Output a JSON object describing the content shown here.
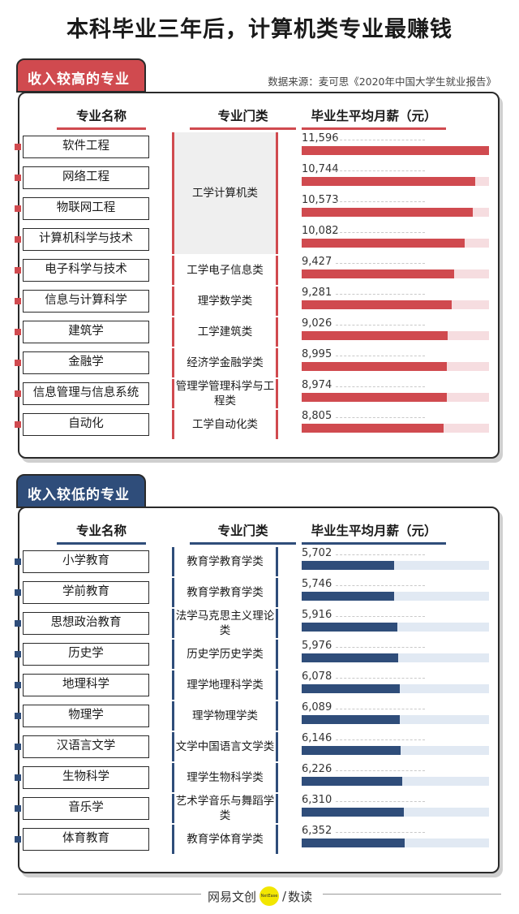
{
  "title": "本科毕业三年后，计算机类专业最赚钱",
  "source": "数据来源：麦可思《2020年中国大学生就业报告》",
  "colors": {
    "high": "#d04a4f",
    "high_track": "#f6dde0",
    "low": "#2f4d7a",
    "low_track": "#e1e9f3"
  },
  "columns": {
    "major": "专业名称",
    "category": "专业门类",
    "salary": "毕业生平均月薪（元）"
  },
  "chart_data": [
    {
      "type": "bar",
      "title": "收入较高的专业",
      "orientation": "horizontal",
      "xlim": [
        0,
        11596
      ],
      "categories": [
        "软件工程",
        "网络工程",
        "物联网工程",
        "计算机科学与技术",
        "电子科学与技术",
        "信息与计算科学",
        "建筑学",
        "金融学",
        "信息管理与信息系统",
        "自动化"
      ],
      "values": [
        11596,
        10744,
        10573,
        10082,
        9427,
        9281,
        9026,
        8995,
        8974,
        8805
      ],
      "value_labels": [
        "11,596",
        "10,744",
        "10,573",
        "10,082",
        "9,427",
        "9,281",
        "9,026",
        "8,995",
        "8,974",
        "8,805"
      ],
      "groups": [
        {
          "label": "工学计算机类",
          "rows": [
            0,
            1,
            2,
            3
          ]
        },
        {
          "label": "工学电子信息类",
          "rows": [
            4
          ]
        },
        {
          "label": "理学数学类",
          "rows": [
            5
          ]
        },
        {
          "label": "工学建筑类",
          "rows": [
            6
          ]
        },
        {
          "label": "经济学金融学类",
          "rows": [
            7
          ]
        },
        {
          "label": "管理学管理科学与工程类",
          "rows": [
            8
          ]
        },
        {
          "label": "工学自动化类",
          "rows": [
            9
          ]
        }
      ]
    },
    {
      "type": "bar",
      "title": "收入较低的专业",
      "orientation": "horizontal",
      "xlim": [
        0,
        11596
      ],
      "categories": [
        "小学教育",
        "学前教育",
        "思想政治教育",
        "历史学",
        "地理科学",
        "物理学",
        "汉语言文学",
        "生物科学",
        "音乐学",
        "体育教育"
      ],
      "values": [
        5702,
        5746,
        5916,
        5976,
        6078,
        6089,
        6146,
        6226,
        6310,
        6352
      ],
      "value_labels": [
        "5,702",
        "5,746",
        "5,916",
        "5,976",
        "6,078",
        "6,089",
        "6,146",
        "6,226",
        "6,310",
        "6,352"
      ],
      "groups": [
        {
          "label": "教育学教育学类",
          "rows": [
            0
          ]
        },
        {
          "label": "教育学教育学类",
          "rows": [
            1
          ]
        },
        {
          "label": "法学马克思主义理论类",
          "rows": [
            2
          ]
        },
        {
          "label": "历史学历史学类",
          "rows": [
            3
          ]
        },
        {
          "label": "理学地理科学类",
          "rows": [
            4
          ]
        },
        {
          "label": "理学物理学类",
          "rows": [
            5
          ]
        },
        {
          "label": "文学中国语言文学类",
          "rows": [
            6
          ]
        },
        {
          "label": "理学生物科学类",
          "rows": [
            7
          ]
        },
        {
          "label": "艺术学音乐与舞蹈学类",
          "rows": [
            8
          ]
        },
        {
          "label": "教育学体育学类",
          "rows": [
            9
          ]
        }
      ]
    }
  ],
  "footer": {
    "brand_left": "网易文创",
    "logo_text": "NetEase",
    "separator": "/",
    "brand_right": "数读"
  }
}
